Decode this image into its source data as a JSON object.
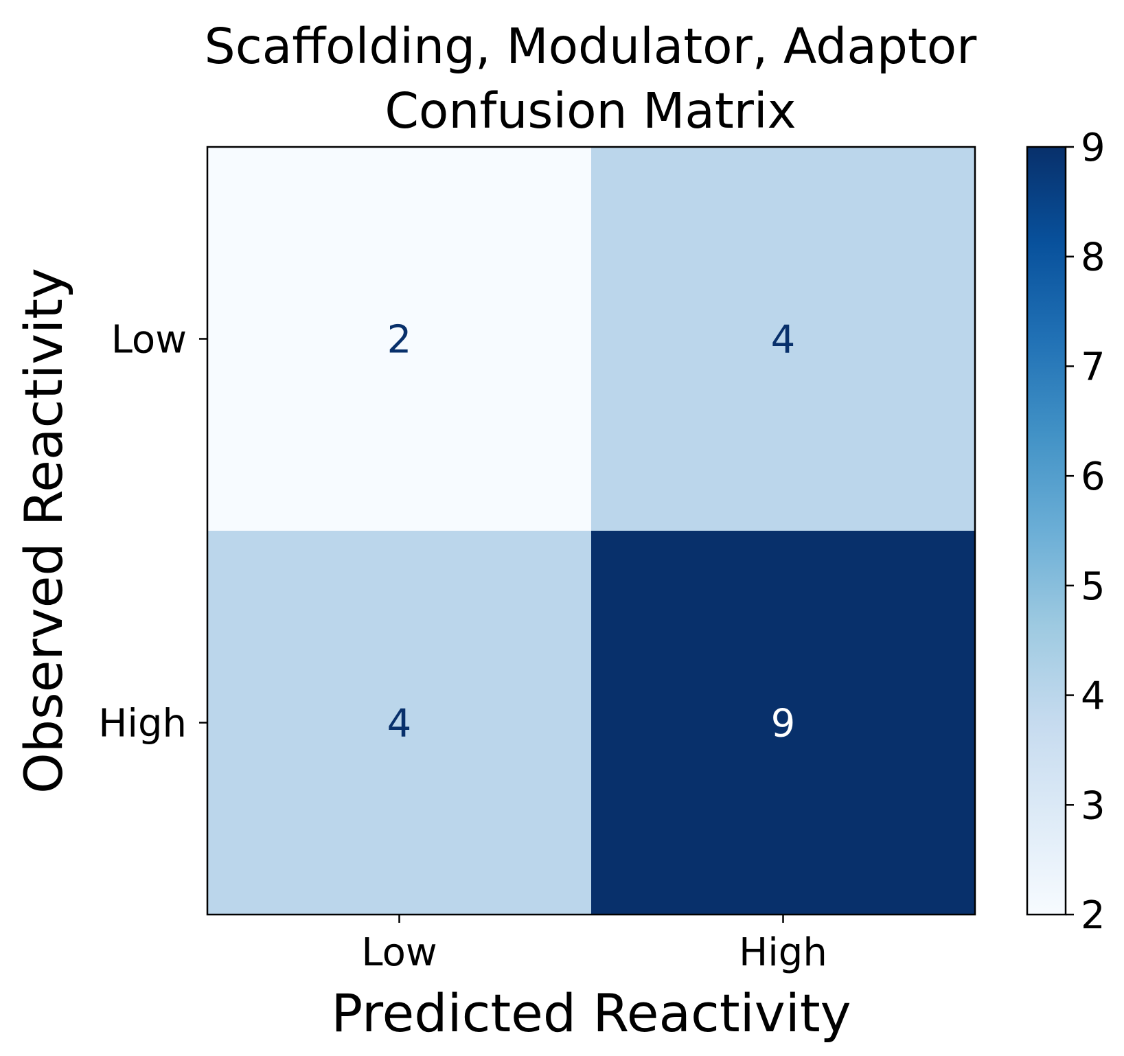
{
  "chart_data": {
    "type": "heatmap",
    "title_lines": [
      "Scaffolding, Modulator, Adaptor",
      "Confusion Matrix"
    ],
    "xlabel": "Predicted Reactivity",
    "ylabel": "Observed Reactivity",
    "x_categories": [
      "Low",
      "High"
    ],
    "y_categories": [
      "Low",
      "High"
    ],
    "matrix": [
      [
        2,
        4
      ],
      [
        4,
        9
      ]
    ],
    "colormap": "Blues",
    "color_range": [
      2,
      9
    ],
    "colorbar_ticks": [
      "2",
      "3",
      "4",
      "5",
      "6",
      "7",
      "8",
      "9"
    ],
    "grid": false,
    "colors": {
      "dark_text": "#08306b",
      "light_text": "#ffffff"
    }
  }
}
